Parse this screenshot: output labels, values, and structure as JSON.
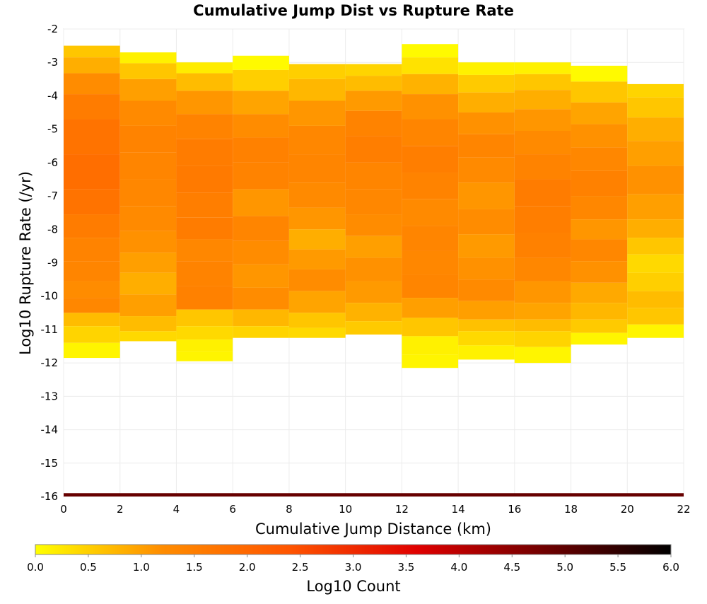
{
  "chart_data": {
    "type": "heatmap",
    "title": "Cumulative Jump Dist vs Rupture Rate",
    "xlabel": "Cumulative Jump Distance (km)",
    "ylabel": "Log10 Rupture Rate (/yr)",
    "xlim": [
      0,
      22
    ],
    "ylim": [
      -16,
      -2
    ],
    "x_ticks": [
      0,
      2,
      4,
      6,
      8,
      10,
      12,
      14,
      16,
      18,
      20,
      22
    ],
    "y_ticks": [
      -2,
      -3,
      -4,
      -5,
      -6,
      -7,
      -8,
      -9,
      -10,
      -11,
      -12,
      -13,
      -14,
      -15,
      -16
    ],
    "grid": true,
    "colorbar": {
      "label": "Log10 Count",
      "range": [
        0,
        6
      ],
      "ticks": [
        0.0,
        0.5,
        1.0,
        1.5,
        2.0,
        2.5,
        3.0,
        3.5,
        4.0,
        4.5,
        5.0,
        5.5,
        6.0
      ],
      "tick_labels": [
        "0.0",
        "0.5",
        "1.0",
        "1.5",
        "2.0",
        "2.5",
        "3.0",
        "3.5",
        "4.0",
        "4.5",
        "5.0",
        "5.5",
        "6.0"
      ],
      "colors": [
        "#ffff00",
        "#ff8c00",
        "#ff5500",
        "#e00000",
        "#700000",
        "#000000"
      ]
    },
    "columns": [
      {
        "x": [
          0,
          2
        ],
        "cells": [
          [
            -2.65,
            0.6
          ],
          [
            -3.05,
            0.85
          ],
          [
            -3.6,
            1.2
          ],
          [
            -4.3,
            1.55
          ],
          [
            -5.1,
            1.75
          ],
          [
            -6.4,
            1.85
          ],
          [
            -7.2,
            1.75
          ],
          [
            -7.9,
            1.55
          ],
          [
            -8.6,
            1.4
          ],
          [
            -9.3,
            1.35
          ],
          [
            -9.8,
            1.2
          ],
          [
            -10.3,
            1.3
          ],
          [
            -10.7,
            0.7
          ],
          [
            -11.1,
            0.45
          ],
          [
            -11.7,
            0.1
          ]
        ]
      },
      {
        "x": [
          2,
          4
        ],
        "cells": [
          [
            -2.85,
            0.15
          ],
          [
            -3.2,
            0.6
          ],
          [
            -3.8,
            1.0
          ],
          [
            -4.5,
            1.25
          ],
          [
            -5.3,
            1.4
          ],
          [
            -6.1,
            1.35
          ],
          [
            -6.9,
            1.3
          ],
          [
            -7.7,
            1.25
          ],
          [
            -8.4,
            1.15
          ],
          [
            -9.0,
            1.0
          ],
          [
            -9.6,
            0.85
          ],
          [
            -10.3,
            1.0
          ],
          [
            -10.9,
            0.7
          ],
          [
            -11.2,
            0.4
          ]
        ]
      },
      {
        "x": [
          4,
          6
        ],
        "cells": [
          [
            -3.15,
            0.2
          ],
          [
            -3.5,
            0.7
          ],
          [
            -4.2,
            1.1
          ],
          [
            -4.9,
            1.4
          ],
          [
            -5.7,
            1.55
          ],
          [
            -6.5,
            1.6
          ],
          [
            -7.3,
            1.5
          ],
          [
            -8.0,
            1.55
          ],
          [
            -8.6,
            1.3
          ],
          [
            -9.3,
            1.4
          ],
          [
            -10.1,
            1.45
          ],
          [
            -10.7,
            0.6
          ],
          [
            -11.1,
            0.4
          ],
          [
            -11.5,
            0.15
          ],
          [
            -11.8,
            0.1
          ]
        ]
      },
      {
        "x": [
          6,
          8
        ],
        "cells": [
          [
            -2.95,
            0.05
          ],
          [
            -3.5,
            0.5
          ],
          [
            -4.2,
            0.95
          ],
          [
            -4.9,
            1.2
          ],
          [
            -5.6,
            1.45
          ],
          [
            -6.4,
            1.4
          ],
          [
            -7.2,
            1.1
          ],
          [
            -8.0,
            1.35
          ],
          [
            -8.7,
            1.2
          ],
          [
            -9.4,
            1.1
          ],
          [
            -10.1,
            1.2
          ],
          [
            -10.7,
            0.75
          ],
          [
            -11.1,
            0.45
          ]
        ]
      },
      {
        "x": [
          8,
          10
        ],
        "cells": [
          [
            -3.2,
            0.5
          ],
          [
            -3.8,
            0.75
          ],
          [
            -4.5,
            1.1
          ],
          [
            -5.3,
            1.3
          ],
          [
            -6.2,
            1.35
          ],
          [
            -7.0,
            1.25
          ],
          [
            -7.7,
            1.1
          ],
          [
            -8.3,
            0.85
          ],
          [
            -8.9,
            1.05
          ],
          [
            -9.5,
            1.2
          ],
          [
            -10.2,
            0.95
          ],
          [
            -10.8,
            0.6
          ],
          [
            -11.1,
            0.4
          ]
        ]
      },
      {
        "x": [
          10,
          12
        ],
        "cells": [
          [
            -3.2,
            0.45
          ],
          [
            -3.6,
            0.7
          ],
          [
            -4.1,
            1.05
          ],
          [
            -4.8,
            1.4
          ],
          [
            -5.6,
            1.5
          ],
          [
            -6.4,
            1.35
          ],
          [
            -7.2,
            1.3
          ],
          [
            -7.9,
            1.2
          ],
          [
            -8.5,
            1.0
          ],
          [
            -9.2,
            1.15
          ],
          [
            -9.9,
            1.05
          ],
          [
            -10.5,
            0.8
          ],
          [
            -11.0,
            0.55
          ]
        ]
      },
      {
        "x": [
          12,
          14
        ],
        "cells": [
          [
            -2.6,
            0.05
          ],
          [
            -3.1,
            0.3
          ],
          [
            -3.6,
            0.8
          ],
          [
            -4.3,
            1.15
          ],
          [
            -5.1,
            1.35
          ],
          [
            -5.9,
            1.5
          ],
          [
            -6.7,
            1.4
          ],
          [
            -7.5,
            1.25
          ],
          [
            -8.3,
            1.35
          ],
          [
            -9.0,
            1.3
          ],
          [
            -9.7,
            1.35
          ],
          [
            -10.4,
            1.0
          ],
          [
            -10.9,
            0.6
          ],
          [
            -11.5,
            0.15
          ],
          [
            -12.0,
            0.1
          ]
        ]
      },
      {
        "x": [
          14,
          16
        ],
        "cells": [
          [
            -3.15,
            0.15
          ],
          [
            -3.6,
            0.55
          ],
          [
            -4.2,
            0.85
          ],
          [
            -4.8,
            1.15
          ],
          [
            -5.5,
            1.35
          ],
          [
            -6.2,
            1.25
          ],
          [
            -7.0,
            1.1
          ],
          [
            -7.8,
            1.2
          ],
          [
            -8.5,
            1.05
          ],
          [
            -9.2,
            1.15
          ],
          [
            -9.8,
            1.25
          ],
          [
            -10.5,
            1.0
          ],
          [
            -10.9,
            0.65
          ],
          [
            -11.2,
            0.4
          ],
          [
            -11.75,
            0.15
          ]
        ]
      },
      {
        "x": [
          16,
          18
        ],
        "cells": [
          [
            -3.15,
            0.15
          ],
          [
            -3.55,
            0.6
          ],
          [
            -4.1,
            0.85
          ],
          [
            -4.7,
            1.1
          ],
          [
            -5.4,
            1.25
          ],
          [
            -6.1,
            1.4
          ],
          [
            -6.9,
            1.55
          ],
          [
            -7.7,
            1.5
          ],
          [
            -8.5,
            1.45
          ],
          [
            -9.2,
            1.3
          ],
          [
            -9.9,
            1.1
          ],
          [
            -10.5,
            0.95
          ],
          [
            -10.9,
            0.7
          ],
          [
            -11.2,
            0.45
          ],
          [
            -11.85,
            0.1
          ]
        ]
      },
      {
        "x": [
          18,
          20
        ],
        "cells": [
          [
            -3.25,
            0.05
          ],
          [
            -3.9,
            0.6
          ],
          [
            -4.5,
            0.95
          ],
          [
            -5.2,
            1.15
          ],
          [
            -5.9,
            1.3
          ],
          [
            -6.6,
            1.45
          ],
          [
            -7.4,
            1.3
          ],
          [
            -8.0,
            1.1
          ],
          [
            -8.6,
            1.3
          ],
          [
            -9.3,
            1.15
          ],
          [
            -9.9,
            0.9
          ],
          [
            -10.5,
            0.75
          ],
          [
            -10.9,
            0.55
          ],
          [
            -11.3,
            0.1
          ]
        ]
      },
      {
        "x": [
          20,
          22
        ],
        "cells": [
          [
            -3.8,
            0.45
          ],
          [
            -4.3,
            0.6
          ],
          [
            -5.0,
            0.85
          ],
          [
            -5.7,
            1.0
          ],
          [
            -6.5,
            1.15
          ],
          [
            -7.4,
            1.0
          ],
          [
            -8.0,
            0.85
          ],
          [
            -8.5,
            0.6
          ],
          [
            -9.0,
            0.4
          ],
          [
            -9.6,
            0.5
          ],
          [
            -10.1,
            0.7
          ],
          [
            -10.6,
            0.6
          ],
          [
            -11.1,
            0.1
          ]
        ]
      }
    ],
    "bottom_band": {
      "x": [
        0,
        22
      ],
      "y": -15.9,
      "log10_count": 4.9
    }
  }
}
